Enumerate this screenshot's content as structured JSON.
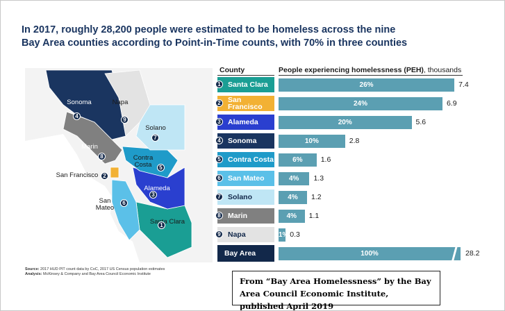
{
  "title": "In 2017, roughly 28,200 people were estimated to be homeless across the nine Bay Area counties according to Point-in-Time counts, with 70% in three counties",
  "chart_data": {
    "type": "bar",
    "orientation": "horizontal",
    "category_header": "County",
    "value_header": "People experiencing homelessness (PEH)",
    "value_unit": ", thousands",
    "categories": [
      "Santa Clara",
      "San Francisco",
      "Alameda",
      "Sonoma",
      "Contra Costa",
      "San Mateo",
      "Solano",
      "Marin",
      "Napa"
    ],
    "ranks": [
      1,
      2,
      3,
      4,
      5,
      6,
      7,
      8,
      9
    ],
    "category_colors": [
      "#1a9e94",
      "#f2b134",
      "#2a3fcf",
      "#1a3560",
      "#1f9bc9",
      "#5bc0e8",
      "#bfe6f5",
      "#808080",
      "#e3e3e3"
    ],
    "category_text_colors": [
      "#ffffff",
      "#ffffff",
      "#ffffff",
      "#ffffff",
      "#ffffff",
      "#ffffff",
      "#12284a",
      "#ffffff",
      "#12284a"
    ],
    "values": [
      7.4,
      6.9,
      5.6,
      2.8,
      1.6,
      1.3,
      1.2,
      1.1,
      0.3
    ],
    "share_labels": [
      "26%",
      "24%",
      "20%",
      "10%",
      "6%",
      "4%",
      "4%",
      "4%",
      "1%"
    ],
    "bar_color": "#5b9fb2",
    "total": {
      "name": "Bay Area",
      "value": 28.2,
      "share_label": "100%",
      "color": "#12284a"
    },
    "axis_break": true
  },
  "source_label": "Source:",
  "source_text": "2017 HUD PIT count data by CoC, 2017 US Census population estimates",
  "analysis_label": "Analysis:",
  "analysis_text": "McKinsey & Company and Bay Area Council Economic Institute",
  "caption": "From “Bay Area Homelessness” by the Bay Area Council Economic Institute, published April 2019"
}
